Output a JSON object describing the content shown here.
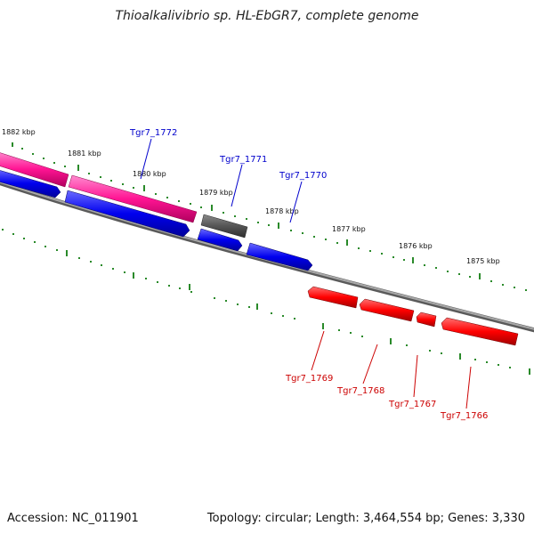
{
  "title": "Thioalkalivibrio sp. HL-EbGR7, complete genome",
  "footer": {
    "accession": "Accession: NC_011901",
    "topology": "Topology: circular; Length: 3,464,554 bp; Genes: 3,330"
  },
  "ruler_labels": [
    "1882 kbp",
    "1881 kbp",
    "1880 kbp",
    "1879 kbp",
    "1878 kbp",
    "1877 kbp",
    "1876 kbp",
    "1875 kbp"
  ],
  "genes_forward": [
    {
      "label": "Tgr7_1772",
      "color": "#0000cc"
    },
    {
      "label": "Tgr7_1771",
      "color": "#0000cc"
    },
    {
      "label": "Tgr7_1770",
      "color": "#0000cc"
    }
  ],
  "genes_reverse": [
    {
      "label": "Tgr7_1769",
      "color": "#cc0000"
    },
    {
      "label": "Tgr7_1768",
      "color": "#cc0000"
    },
    {
      "label": "Tgr7_1767",
      "color": "#cc0000"
    },
    {
      "label": "Tgr7_1766",
      "color": "#cc0000"
    }
  ],
  "colors": {
    "pink_feature": "#ff1493",
    "blue_feature": "#0000ee",
    "gray_feature": "#555555",
    "red_feature": "#ff0000",
    "backbone": "#808080",
    "ticks": "#2a8a2a"
  }
}
